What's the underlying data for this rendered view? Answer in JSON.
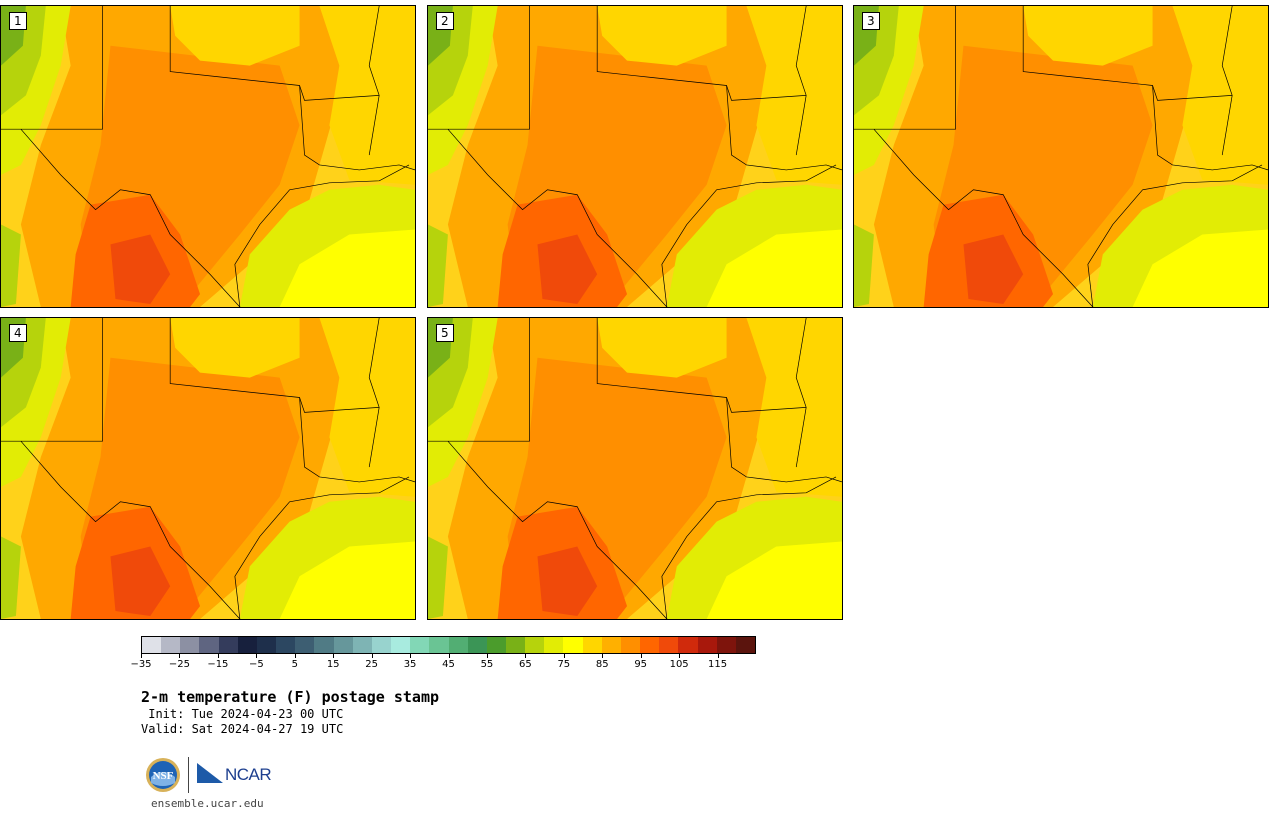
{
  "panels": [
    {
      "label": "1"
    },
    {
      "label": "2"
    },
    {
      "label": "3"
    },
    {
      "label": "4"
    },
    {
      "label": "5"
    }
  ],
  "colorbar": {
    "colors": [
      "#dfe1e8",
      "#b5b8c6",
      "#8c90a3",
      "#5f6581",
      "#343c5c",
      "#17203d",
      "#1e2f4b",
      "#2c4761",
      "#3d5e72",
      "#507b85",
      "#66979b",
      "#7eb4b4",
      "#98d3ce",
      "#a8ebdf",
      "#82d7b6",
      "#6ac494",
      "#52ae73",
      "#3b9556",
      "#4b9c2c",
      "#79b117",
      "#b6d30c",
      "#e2ec05",
      "#ffff00",
      "#ffd600",
      "#ffb000",
      "#ff8f00",
      "#ff6600",
      "#f04a0a",
      "#d02a0c",
      "#a8180c",
      "#7e140c",
      "#5b140d"
    ],
    "ticks": [
      "−35",
      "−25",
      "−15",
      "−5",
      "5",
      "15",
      "25",
      "35",
      "45",
      "55",
      "65",
      "75",
      "85",
      "95",
      "105",
      "115"
    ]
  },
  "title": "2-m temperature (F) postage stamp",
  "init": " Init: Tue 2024-04-23 00 UTC",
  "valid": "Valid: Sat 2024-04-27 19 UTC",
  "logos": {
    "nsf": "nsf-logo",
    "ncar_text": "NCAR"
  },
  "site": "ensemble.ucar.edu"
}
